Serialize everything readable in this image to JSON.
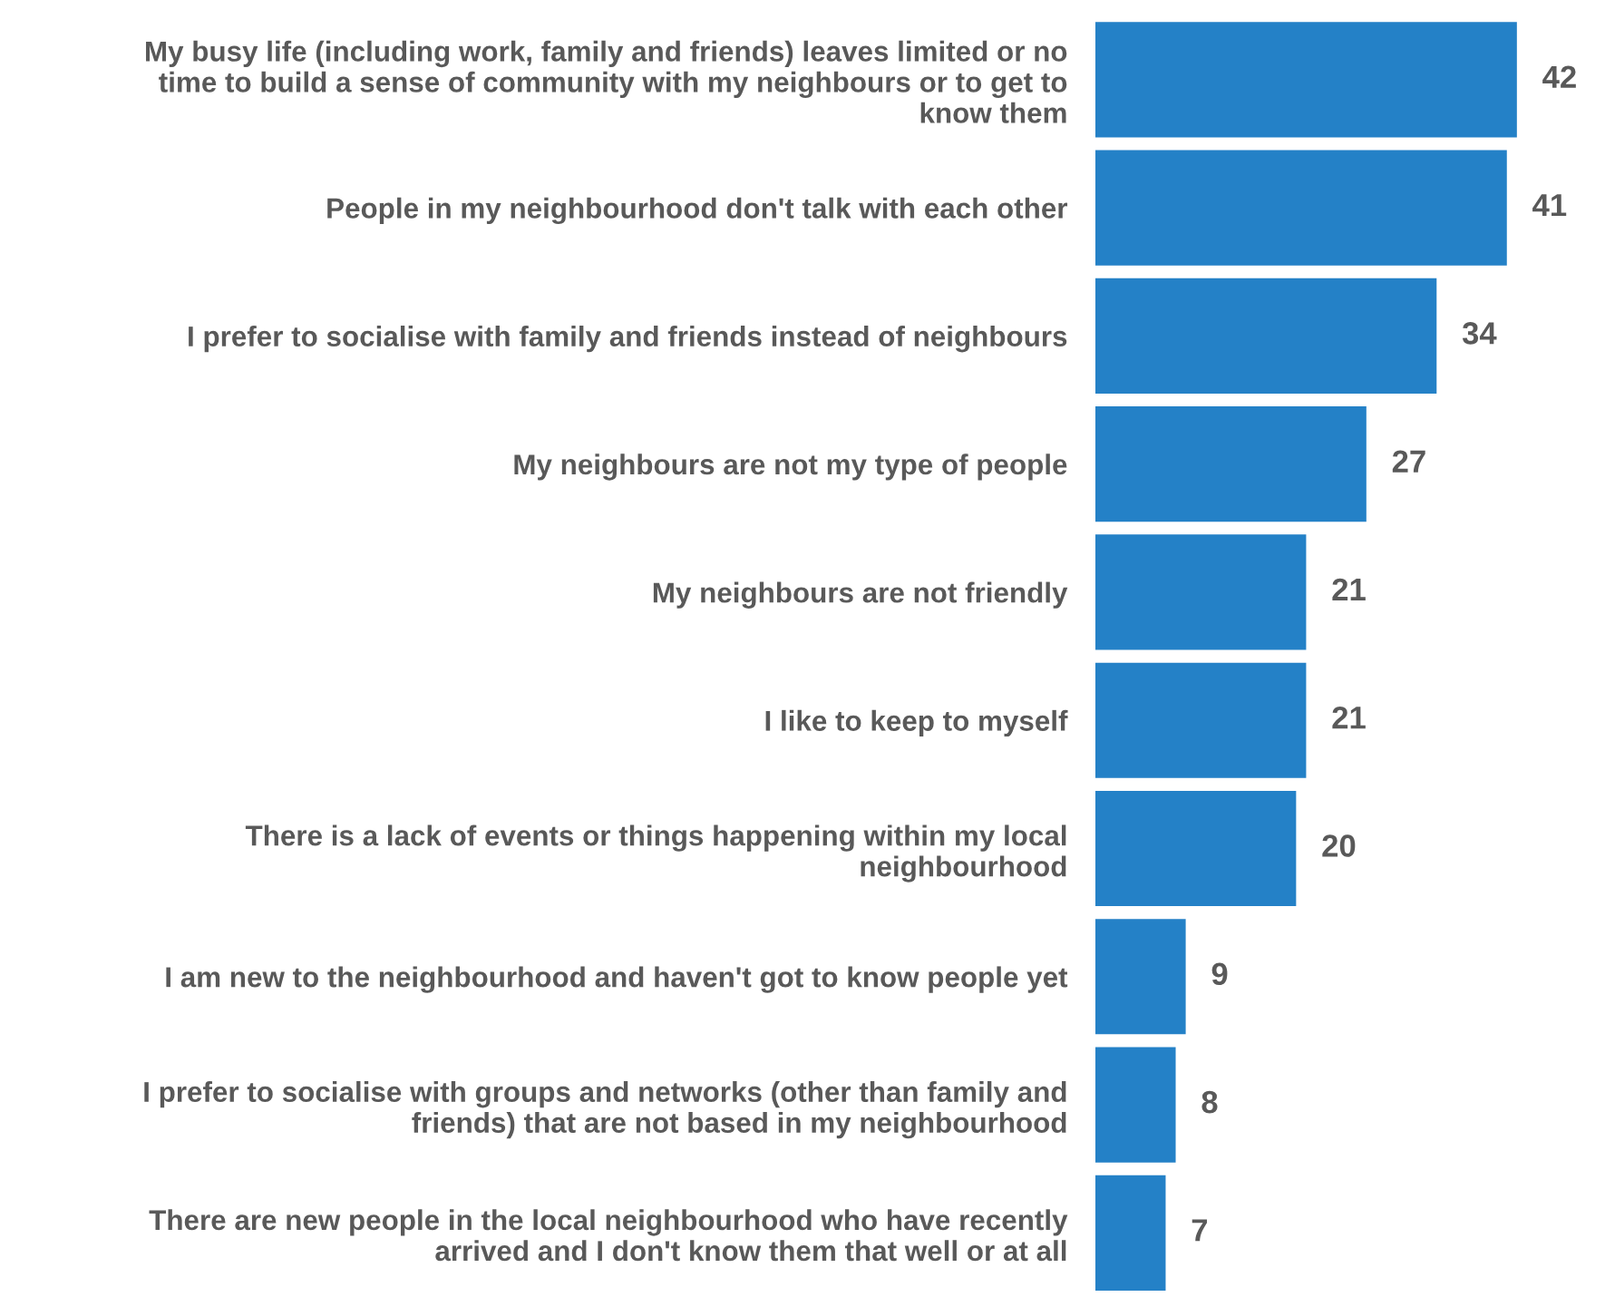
{
  "chart_data": {
    "type": "bar",
    "orientation": "horizontal",
    "categories": [
      "My busy life (including work, family and friends) leaves limited or no\ntime to build a sense of community with my neighbours or to get to\nknow them",
      "People in my neighbourhood don't talk with each other",
      "I prefer to socialise with family and friends instead of neighbours",
      "My neighbours are not my type of people",
      "My neighbours are not friendly",
      "I like to keep to myself",
      "There is a lack of events or things happening within my local\nneighbourhood",
      "I am new to the neighbourhood and haven't got to know people yet",
      "I prefer to socialise with groups and networks (other than family and\nfriends) that are not based in my neighbourhood",
      "There are new people in the local neighbourhood who have recently\narrived and I don't know them that well or at all"
    ],
    "values": [
      42,
      41,
      34,
      27,
      21,
      21,
      20,
      9,
      8,
      7
    ],
    "color": "#2481c7",
    "data_labels": true,
    "grid": false,
    "legend": false,
    "tick_labels": "y"
  }
}
